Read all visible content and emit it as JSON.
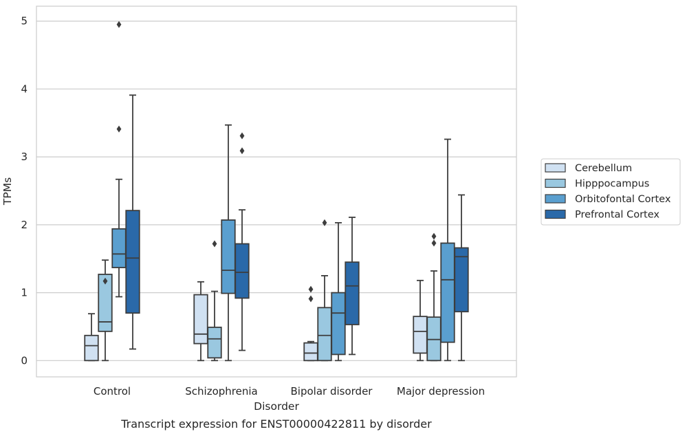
{
  "chart_data": {
    "type": "box",
    "caption": "Transcript expression for ENST00000422811 by disorder",
    "xlabel": "Disorder",
    "ylabel": "TPMs",
    "ylim": [
      -0.24,
      5.22
    ],
    "yticks": [
      0,
      1,
      2,
      3,
      4,
      5
    ],
    "grid": "horizontal",
    "legend_position": "right",
    "categories": [
      "Control",
      "Schizophrenia",
      "Bipolar disorder",
      "Major depression"
    ],
    "series": [
      {
        "name": "Cerebellum",
        "color": "#d0e1f2",
        "boxes": [
          {
            "whisker_low": 0.0,
            "q1": 0.0,
            "median": 0.22,
            "q3": 0.37,
            "whisker_high": 0.69,
            "outliers": []
          },
          {
            "whisker_low": 0.0,
            "q1": 0.25,
            "median": 0.39,
            "q3": 0.97,
            "whisker_high": 1.16,
            "outliers": []
          },
          {
            "whisker_low": 0.0,
            "q1": 0.0,
            "median": 0.11,
            "q3": 0.26,
            "whisker_high": 0.28,
            "outliers": [
              0.91,
              1.05
            ]
          },
          {
            "whisker_low": 0.0,
            "q1": 0.11,
            "median": 0.43,
            "q3": 0.65,
            "whisker_high": 1.18,
            "outliers": []
          }
        ]
      },
      {
        "name": "Hipppocampus",
        "color": "#9ac8e0",
        "boxes": [
          {
            "whisker_low": 0.0,
            "q1": 0.43,
            "median": 0.57,
            "q3": 1.27,
            "whisker_high": 1.48,
            "outliers": [
              1.17
            ]
          },
          {
            "whisker_low": 0.0,
            "q1": 0.04,
            "median": 0.32,
            "q3": 0.49,
            "whisker_high": 1.02,
            "outliers": [
              1.72
            ]
          },
          {
            "whisker_low": 0.0,
            "q1": 0.0,
            "median": 0.37,
            "q3": 0.78,
            "whisker_high": 1.25,
            "outliers": [
              2.03
            ]
          },
          {
            "whisker_low": 0.0,
            "q1": 0.0,
            "median": 0.31,
            "q3": 0.64,
            "whisker_high": 1.32,
            "outliers": [
              1.73,
              1.83
            ]
          }
        ]
      },
      {
        "name": "Orbitofontal Cortex",
        "color": "#5a9fcf",
        "boxes": [
          {
            "whisker_low": 0.94,
            "q1": 1.37,
            "median": 1.57,
            "q3": 1.94,
            "whisker_high": 2.67,
            "outliers": [
              3.41,
              4.95
            ]
          },
          {
            "whisker_low": 0.0,
            "q1": 0.99,
            "median": 1.33,
            "q3": 2.07,
            "whisker_high": 3.47,
            "outliers": []
          },
          {
            "whisker_low": 0.0,
            "q1": 0.09,
            "median": 0.7,
            "q3": 1.0,
            "whisker_high": 2.03,
            "outliers": []
          },
          {
            "whisker_low": 0.0,
            "q1": 0.27,
            "median": 1.19,
            "q3": 1.73,
            "whisker_high": 3.26,
            "outliers": []
          }
        ]
      },
      {
        "name": "Prefrontal Cortex",
        "color": "#2a69a9",
        "boxes": [
          {
            "whisker_low": 0.17,
            "q1": 0.7,
            "median": 1.51,
            "q3": 2.21,
            "whisker_high": 3.91,
            "outliers": []
          },
          {
            "whisker_low": 0.15,
            "q1": 0.92,
            "median": 1.3,
            "q3": 1.72,
            "whisker_high": 2.22,
            "outliers": [
              3.09,
              3.31
            ]
          },
          {
            "whisker_low": 0.09,
            "q1": 0.53,
            "median": 1.1,
            "q3": 1.45,
            "whisker_high": 2.11,
            "outliers": []
          },
          {
            "whisker_low": 0.0,
            "q1": 0.72,
            "median": 1.53,
            "q3": 1.66,
            "whisker_high": 2.44,
            "outliers": []
          }
        ]
      }
    ]
  }
}
